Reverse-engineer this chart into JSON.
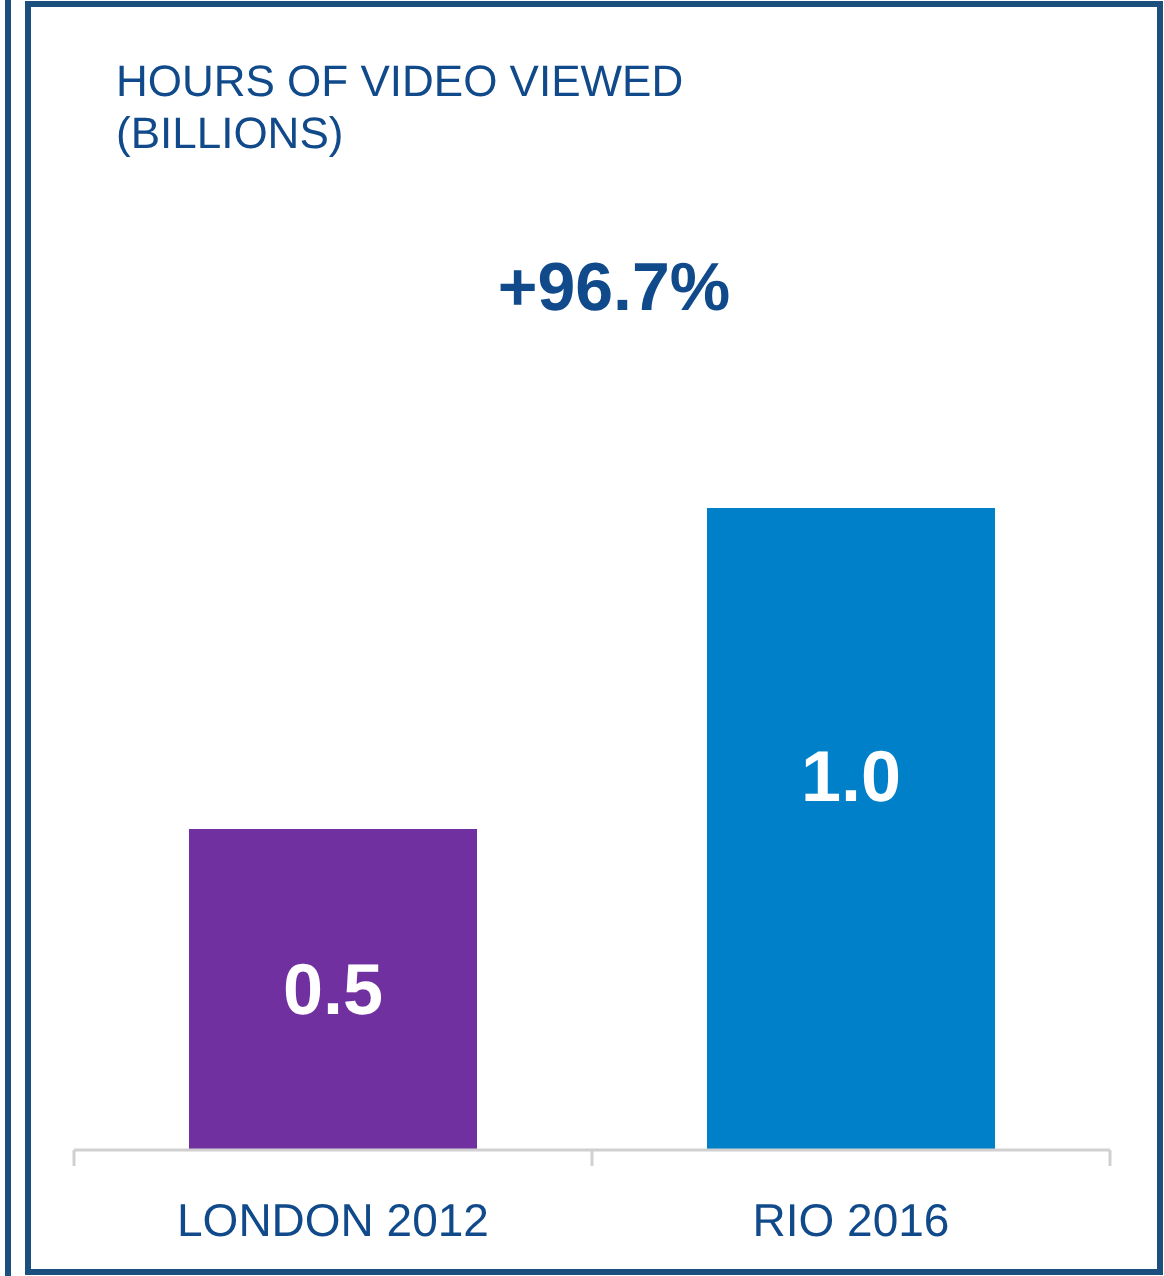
{
  "chart_data": {
    "type": "bar",
    "title": "HOURS OF VIDEO VIEWED (BILLIONS)",
    "annotations": [
      "+96.7%"
    ],
    "categories": [
      "LONDON 2012",
      "RIO 2016"
    ],
    "values": [
      0.5,
      1.0
    ],
    "colors": [
      "#7030a0",
      "#0080c8"
    ],
    "value_labels": [
      "0.5",
      "1.0"
    ]
  }
}
